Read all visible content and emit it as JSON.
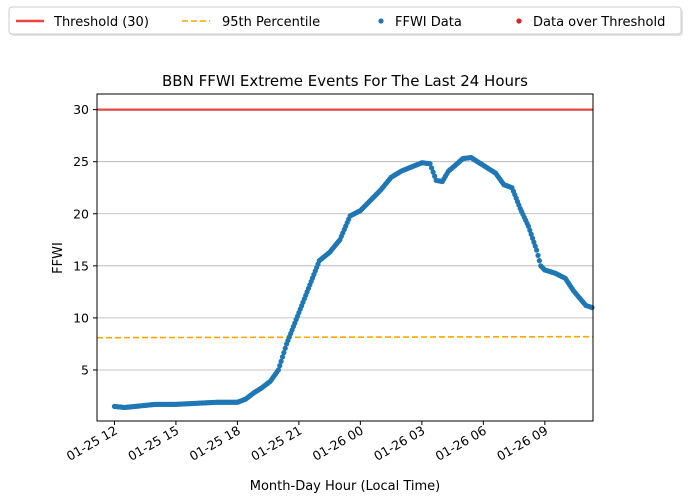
{
  "chart_data": {
    "type": "scatter",
    "title": "BBN FFWI Extreme Events For The Last 24 Hours",
    "xlabel": "Month-Day Hour (Local Time)",
    "ylabel": "FFWI",
    "xlim_hours": [
      11.15,
      35.35
    ],
    "ylim": [
      0.1,
      31.5
    ],
    "x_tick_labels": [
      "01-25 12",
      "01-25 15",
      "01-25 18",
      "01-25 21",
      "01-26 00",
      "01-26 03",
      "01-26 06",
      "01-26 09"
    ],
    "x_tick_hours": [
      12,
      15,
      18,
      21,
      24,
      27,
      30,
      33
    ],
    "y_ticks": [
      5,
      10,
      15,
      20,
      25,
      30
    ],
    "grid": "y-major",
    "legend": {
      "placement": "top-outside",
      "entries": [
        {
          "label": "Threshold (30)",
          "marker": "line",
          "color": "#e84646"
        },
        {
          "label": "95th Percentile",
          "marker": "dashed-line",
          "color": "#ffa500"
        },
        {
          "label": "FFWI Data",
          "marker": "dot",
          "color": "#1f77b4"
        },
        {
          "label": "Data over Threshold",
          "marker": "dot",
          "color": "#d62728"
        }
      ]
    },
    "threshold": {
      "name": "Threshold (30)",
      "value": 30,
      "color": "#e84646"
    },
    "percentile_95": {
      "name": "95th Percentile",
      "start_value": 8.1,
      "end_value": 8.2,
      "color": "#ffa500"
    },
    "series": [
      {
        "name": "FFWI Data",
        "color": "#1f77b4",
        "points": [
          [
            12.0,
            1.5
          ],
          [
            12.5,
            1.4
          ],
          [
            13.0,
            1.5
          ],
          [
            13.5,
            1.6
          ],
          [
            14.0,
            1.7
          ],
          [
            15.0,
            1.7
          ],
          [
            16.0,
            1.8
          ],
          [
            17.0,
            1.9
          ],
          [
            18.0,
            1.9
          ],
          [
            18.4,
            2.2
          ],
          [
            18.8,
            2.8
          ],
          [
            19.2,
            3.3
          ],
          [
            19.6,
            3.9
          ],
          [
            20.0,
            5.0
          ],
          [
            20.4,
            7.5
          ],
          [
            20.8,
            9.5
          ],
          [
            21.2,
            11.5
          ],
          [
            21.6,
            13.5
          ],
          [
            22.0,
            15.5
          ],
          [
            22.5,
            16.3
          ],
          [
            23.0,
            17.5
          ],
          [
            23.5,
            19.8
          ],
          [
            24.0,
            20.3
          ],
          [
            24.5,
            21.3
          ],
          [
            25.0,
            22.3
          ],
          [
            25.5,
            23.5
          ],
          [
            26.0,
            24.1
          ],
          [
            26.5,
            24.5
          ],
          [
            27.0,
            24.9
          ],
          [
            27.4,
            24.8
          ],
          [
            27.7,
            23.2
          ],
          [
            28.0,
            23.1
          ],
          [
            28.3,
            24.1
          ],
          [
            28.6,
            24.6
          ],
          [
            29.0,
            25.3
          ],
          [
            29.4,
            25.4
          ],
          [
            29.8,
            24.9
          ],
          [
            30.2,
            24.4
          ],
          [
            30.6,
            23.9
          ],
          [
            31.0,
            22.8
          ],
          [
            31.4,
            22.5
          ],
          [
            31.8,
            20.5
          ],
          [
            32.2,
            18.8
          ],
          [
            32.6,
            16.5
          ],
          [
            32.8,
            15.0
          ],
          [
            33.0,
            14.6
          ],
          [
            33.5,
            14.3
          ],
          [
            34.0,
            13.8
          ],
          [
            34.4,
            12.6
          ],
          [
            34.7,
            11.9
          ],
          [
            35.0,
            11.2
          ],
          [
            35.3,
            11.0
          ]
        ]
      },
      {
        "name": "Data over Threshold",
        "color": "#d62728",
        "points": []
      }
    ]
  }
}
